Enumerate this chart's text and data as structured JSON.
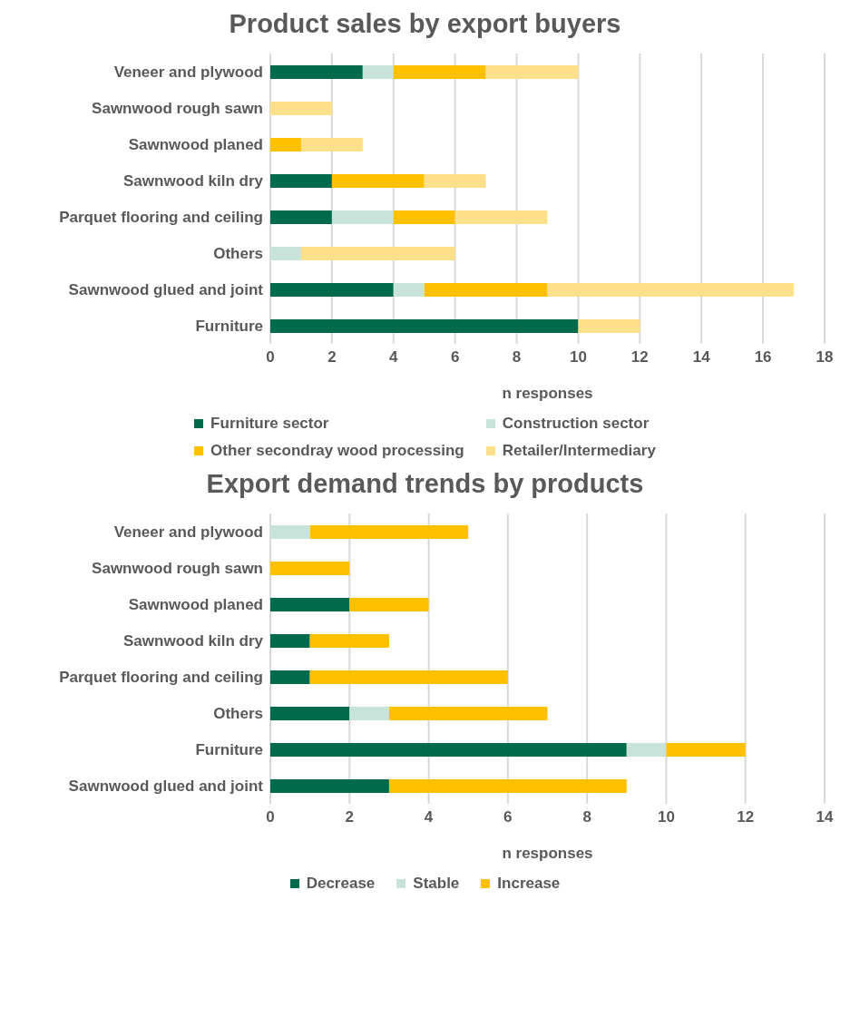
{
  "chart_data": [
    {
      "type": "bar",
      "title": "Product sales by export buyers",
      "xlabel": "n responses",
      "orientation": "horizontal",
      "stacked": true,
      "categories": [
        "Veneer and plywood",
        "Sawnwood rough sawn",
        "Sawnwood planed",
        "Sawnwood kiln dry",
        "Parquet flooring and ceiling",
        "Others",
        "Sawnwood glued and joint",
        "Furniture"
      ],
      "series": [
        {
          "name": "Furniture sector",
          "color": "#006b4a",
          "values": [
            3,
            null,
            null,
            2,
            2,
            null,
            4,
            10
          ]
        },
        {
          "name": "Construction sector",
          "color": "#c8e3da",
          "values": [
            1,
            null,
            null,
            null,
            2,
            1,
            1,
            null
          ]
        },
        {
          "name": "Other secondray wood processing",
          "color": "#ffc000",
          "values": [
            3,
            null,
            1,
            3,
            2,
            null,
            4,
            null
          ]
        },
        {
          "name": "Retailer/Intermediary",
          "color": "#ffe08a",
          "values": [
            3,
            2,
            2,
            2,
            3,
            5,
            8,
            2
          ]
        }
      ],
      "xlim": [
        0,
        18
      ],
      "xticks": [
        0,
        2,
        4,
        6,
        8,
        10,
        12,
        14,
        16,
        18
      ],
      "grid": "x",
      "legend": "bottom"
    },
    {
      "type": "bar",
      "title": "Export demand trends by products",
      "xlabel": "n responses",
      "orientation": "horizontal",
      "stacked": true,
      "categories": [
        "Veneer and plywood",
        "Sawnwood rough sawn",
        "Sawnwood planed",
        "Sawnwood kiln dry",
        "Parquet flooring and ceiling",
        "Others",
        "Furniture",
        "Sawnwood glued and joint"
      ],
      "series": [
        {
          "name": "Decrease",
          "color": "#006b4a",
          "values": [
            null,
            null,
            2,
            1,
            1,
            2,
            9,
            3
          ]
        },
        {
          "name": "Stable",
          "color": "#c8e3da",
          "values": [
            1,
            null,
            null,
            null,
            null,
            1,
            1,
            null
          ]
        },
        {
          "name": "Increase",
          "color": "#ffc000",
          "values": [
            4,
            2,
            2,
            2,
            5,
            4,
            2,
            6
          ]
        }
      ],
      "xlim": [
        0,
        14
      ],
      "xticks": [
        0,
        2,
        4,
        6,
        8,
        10,
        12,
        14
      ],
      "grid": "x",
      "legend": "bottom"
    }
  ]
}
